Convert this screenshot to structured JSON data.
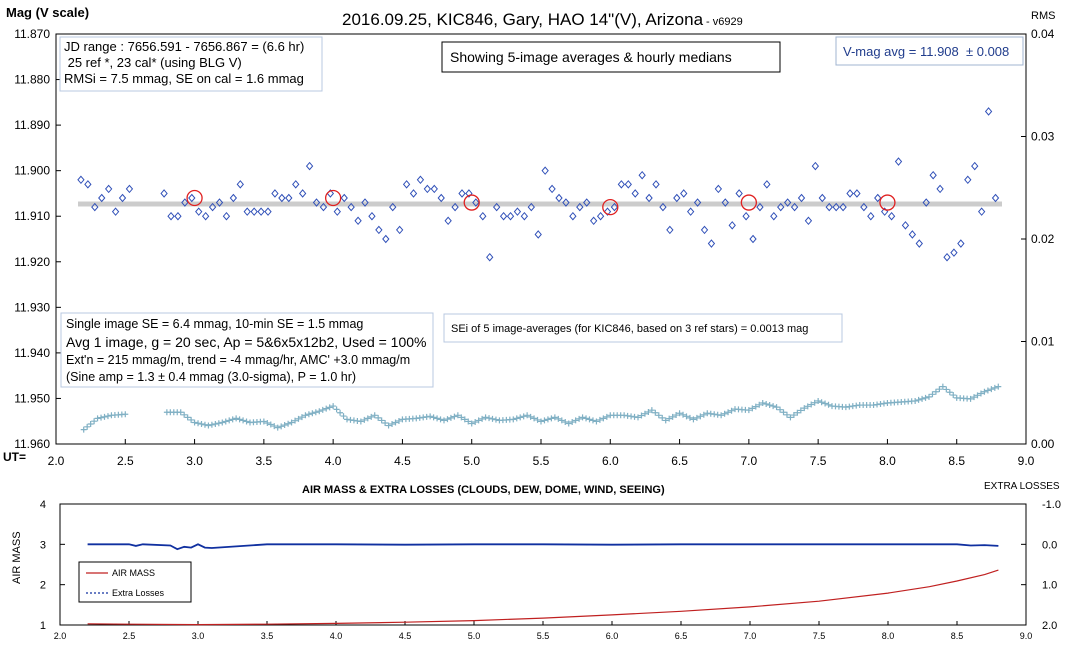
{
  "top_chart": {
    "title": "2016.09.25, KIC846, Gary, HAO 14\"(V), Arizona",
    "version": "- v6929",
    "y_label": "Mag (V scale)",
    "y2_label": "RMS",
    "x_prefix": "UT=",
    "y_ticks": [
      "11.870",
      "11.880",
      "11.890",
      "11.900",
      "11.910",
      "11.920",
      "11.930",
      "11.940",
      "11.950",
      "11.960"
    ],
    "y2_ticks": [
      "0.04",
      "0.03",
      "0.02",
      "0.01",
      "0.00"
    ],
    "x_ticks": [
      "2.0",
      "2.5",
      "3.0",
      "3.5",
      "4.0",
      "4.5",
      "5.0",
      "5.5",
      "6.0",
      "6.5",
      "7.0",
      "7.5",
      "8.0",
      "8.5",
      "9.0"
    ],
    "info_box": [
      "JD range : 7656.591 - 7656.867 = (6.6 hr)",
      " 25 ref *, 23 cal* (using BLG V)",
      "RMSi = 7.5 mmag, SE on cal = 1.6 mmag"
    ],
    "showing_box": "Showing 5-image averages & hourly medians",
    "vmag_box": "V-mag avg = 11.908  ± 0.008",
    "stats_box": [
      "Single image SE = 6.4 mmag, 10-min SE = 1.5 mmag",
      "Avg 1 image, g = 20 sec, Ap = 5&6x5x12b2, Used = 100%",
      "Ext'n = 215 mmag/m, trend = -4 mmag/hr, AMC' +3.0 mmag/m",
      "(Sine amp = 1.3 ± 0.4 mmag (3.0-sigma), P = 1.0 hr)"
    ],
    "sei_box": "SEi of 5 image-averages (for KIC846, based on 3 ref stars) = 0.0013 mag"
  },
  "bottom_chart": {
    "title": "AIR MASS & EXTRA LOSSES (CLOUDS, DEW, DOME, WIND, SEEING)",
    "y_label": "AIR MASS",
    "y2_label": "EXTRA LOSSES",
    "y_ticks": [
      "4",
      "3",
      "2",
      "1"
    ],
    "y2_ticks": [
      "-1.0",
      "0.0",
      "1.0",
      "2.0"
    ],
    "x_ticks": [
      "2.0",
      "2.5",
      "3.0",
      "3.5",
      "4.0",
      "4.5",
      "5.0",
      "5.5",
      "6.0",
      "6.5",
      "7.0",
      "7.5",
      "8.0",
      "8.5",
      "9.0"
    ],
    "legend": [
      "AIR MASS",
      "Extra Losses"
    ]
  },
  "colors": {
    "diamond": "#3050b8",
    "median": "#e02020",
    "rms": "#80b0c4",
    "avg_line": "#cccccc",
    "airmass": "#c02020",
    "losses": "#1030a0",
    "vmag_text": "#203c8c"
  },
  "chart_data": [
    {
      "type": "scatter",
      "title": "2016.09.25, KIC846, Gary, HAO 14\"(V), Arizona",
      "xlabel": "UT=",
      "ylabel": "Mag (V scale)",
      "y2label": "RMS",
      "xlim": [
        2.0,
        9.0
      ],
      "ylim": [
        11.96,
        11.87
      ],
      "y2lim": [
        0.0,
        0.04
      ],
      "grid": false,
      "average_line": 11.907,
      "series": [
        {
          "marker": "diamond",
          "x": [
            2.18,
            2.23,
            2.28,
            2.33,
            2.38,
            2.43,
            2.48,
            2.53,
            2.78,
            2.83,
            2.88,
            2.93,
            2.98,
            3.03,
            3.08,
            3.13,
            3.18,
            3.23,
            3.28,
            3.33,
            3.38,
            3.43,
            3.48,
            3.53,
            3.58,
            3.63,
            3.68,
            3.73,
            3.78,
            3.83,
            3.88,
            3.93,
            3.98,
            4.03,
            4.08,
            4.13,
            4.18,
            4.23,
            4.28,
            4.33,
            4.38,
            4.43,
            4.48,
            4.53,
            4.58,
            4.63,
            4.68,
            4.73,
            4.78,
            4.83,
            4.88,
            4.93,
            4.98,
            5.03,
            5.08,
            5.13,
            5.18,
            5.23,
            5.28,
            5.33,
            5.38,
            5.43,
            5.48,
            5.53,
            5.58,
            5.63,
            5.68,
            5.73,
            5.78,
            5.83,
            5.88,
            5.93,
            5.98,
            6.03,
            6.08,
            6.13,
            6.18,
            6.23,
            6.28,
            6.33,
            6.38,
            6.43,
            6.48,
            6.53,
            6.58,
            6.63,
            6.68,
            6.73,
            6.78,
            6.83,
            6.88,
            6.93,
            6.98,
            7.03,
            7.08,
            7.13,
            7.18,
            7.23,
            7.28,
            7.33,
            7.38,
            7.43,
            7.48,
            7.53,
            7.58,
            7.63,
            7.68,
            7.73,
            7.78,
            7.83,
            7.88,
            7.93,
            7.98,
            8.03,
            8.08,
            8.13,
            8.18,
            8.23,
            8.28,
            8.33,
            8.38,
            8.43,
            8.48,
            8.53,
            8.58,
            8.63,
            8.68,
            8.73,
            8.78
          ],
          "y": [
            11.902,
            11.903,
            11.908,
            11.906,
            11.904,
            11.909,
            11.906,
            11.904,
            11.905,
            11.91,
            11.91,
            11.907,
            11.906,
            11.909,
            11.91,
            11.908,
            11.907,
            11.91,
            11.906,
            11.903,
            11.909,
            11.909,
            11.909,
            11.909,
            11.905,
            11.906,
            11.906,
            11.903,
            11.905,
            11.899,
            11.907,
            11.908,
            11.905,
            11.909,
            11.906,
            11.908,
            11.911,
            11.907,
            11.91,
            11.913,
            11.915,
            11.908,
            11.913,
            11.903,
            11.905,
            11.902,
            11.904,
            11.904,
            11.906,
            11.911,
            11.908,
            11.905,
            11.905,
            11.907,
            11.91,
            11.919,
            11.908,
            11.91,
            11.91,
            11.909,
            11.91,
            11.908,
            11.914,
            11.9,
            11.904,
            11.906,
            11.907,
            11.91,
            11.908,
            11.907,
            11.911,
            11.91,
            11.909,
            11.908,
            11.903,
            11.903,
            11.905,
            11.901,
            11.906,
            11.903,
            11.908,
            11.913,
            11.906,
            11.905,
            11.909,
            11.907,
            11.913,
            11.916,
            11.904,
            11.907,
            11.912,
            11.905,
            11.91,
            11.915,
            11.908,
            11.903,
            11.91,
            11.908,
            11.907,
            11.908,
            11.906,
            11.911,
            11.899,
            11.906,
            11.908,
            11.908,
            11.908,
            11.905,
            11.905,
            11.908,
            11.91,
            11.906,
            11.909,
            11.91,
            11.898,
            11.912,
            11.914,
            11.916,
            11.907,
            11.901,
            11.904,
            11.919,
            11.918,
            11.916,
            11.902,
            11.899,
            11.909,
            11.887,
            11.906
          ]
        },
        {
          "name": "hourly medians",
          "marker": "circle",
          "x": [
            3.0,
            4.0,
            5.0,
            6.0,
            7.0,
            8.0
          ],
          "y": [
            11.906,
            11.906,
            11.907,
            11.908,
            11.907,
            11.907
          ]
        },
        {
          "name": "RMS",
          "marker": "plus",
          "axis": "y2",
          "x": [
            2.2,
            2.3,
            2.4,
            2.5,
            2.8,
            2.9,
            3.0,
            3.1,
            3.2,
            3.3,
            3.4,
            3.5,
            3.6,
            3.7,
            3.8,
            3.9,
            4.0,
            4.1,
            4.2,
            4.3,
            4.4,
            4.5,
            4.6,
            4.7,
            4.8,
            4.9,
            5.0,
            5.1,
            5.2,
            5.3,
            5.4,
            5.5,
            5.6,
            5.7,
            5.8,
            5.9,
            6.0,
            6.1,
            6.2,
            6.3,
            6.4,
            6.5,
            6.6,
            6.7,
            6.8,
            6.9,
            7.0,
            7.1,
            7.2,
            7.3,
            7.4,
            7.5,
            7.6,
            7.7,
            7.8,
            7.9,
            8.0,
            8.1,
            8.2,
            8.3,
            8.4,
            8.5,
            8.6,
            8.7,
            8.8
          ],
          "y": [
            0.0014,
            0.0025,
            0.0028,
            0.0029,
            0.0031,
            0.0031,
            0.0021,
            0.0018,
            0.0021,
            0.0025,
            0.0021,
            0.0022,
            0.0016,
            0.0021,
            0.0028,
            0.0032,
            0.0037,
            0.0024,
            0.0022,
            0.0028,
            0.0018,
            0.0024,
            0.0025,
            0.0027,
            0.0023,
            0.0028,
            0.002,
            0.0026,
            0.0023,
            0.0024,
            0.0028,
            0.0022,
            0.0026,
            0.002,
            0.0026,
            0.0022,
            0.0028,
            0.0028,
            0.0026,
            0.0033,
            0.0023,
            0.003,
            0.0024,
            0.003,
            0.0028,
            0.0034,
            0.0033,
            0.004,
            0.0036,
            0.0026,
            0.0035,
            0.0042,
            0.0037,
            0.0036,
            0.0038,
            0.0038,
            0.004,
            0.0041,
            0.0042,
            0.0046,
            0.0056,
            0.0045,
            0.0044,
            0.0051,
            0.0056
          ]
        }
      ]
    },
    {
      "type": "line",
      "title": "AIR MASS & EXTRA LOSSES (CLOUDS, DEW, DOME, WIND, SEEING)",
      "xlabel": "",
      "ylabel": "AIR MASS",
      "y2label": "EXTRA LOSSES",
      "xlim": [
        2.0,
        9.0
      ],
      "ylim": [
        1,
        4
      ],
      "y2lim": [
        2.0,
        -1.0
      ],
      "legend": "left-inside",
      "series": [
        {
          "name": "AIR MASS",
          "axis": "y",
          "x": [
            2.2,
            2.5,
            3.0,
            3.5,
            4.0,
            4.5,
            5.0,
            5.5,
            6.0,
            6.5,
            7.0,
            7.5,
            8.0,
            8.3,
            8.5,
            8.7,
            8.8
          ],
          "y": [
            1.03,
            1.02,
            1.01,
            1.02,
            1.04,
            1.07,
            1.11,
            1.17,
            1.25,
            1.34,
            1.45,
            1.59,
            1.79,
            1.95,
            2.09,
            2.25,
            2.36
          ]
        },
        {
          "name": "Extra Losses",
          "axis": "y2",
          "x": [
            2.2,
            2.5,
            2.55,
            2.6,
            2.8,
            2.85,
            2.9,
            2.95,
            3.0,
            3.05,
            3.1,
            3.5,
            4.0,
            4.5,
            5.0,
            5.5,
            6.0,
            6.5,
            7.0,
            7.5,
            8.0,
            8.5,
            8.6,
            8.7,
            8.8
          ],
          "y": [
            0.0,
            0.0,
            0.04,
            0.0,
            0.03,
            0.12,
            0.06,
            0.08,
            0.0,
            0.08,
            0.09,
            0.0,
            0.0,
            0.01,
            0.0,
            0.0,
            0.01,
            0.0,
            0.0,
            0.0,
            0.0,
            0.0,
            0.03,
            0.02,
            0.04
          ]
        }
      ]
    }
  ]
}
